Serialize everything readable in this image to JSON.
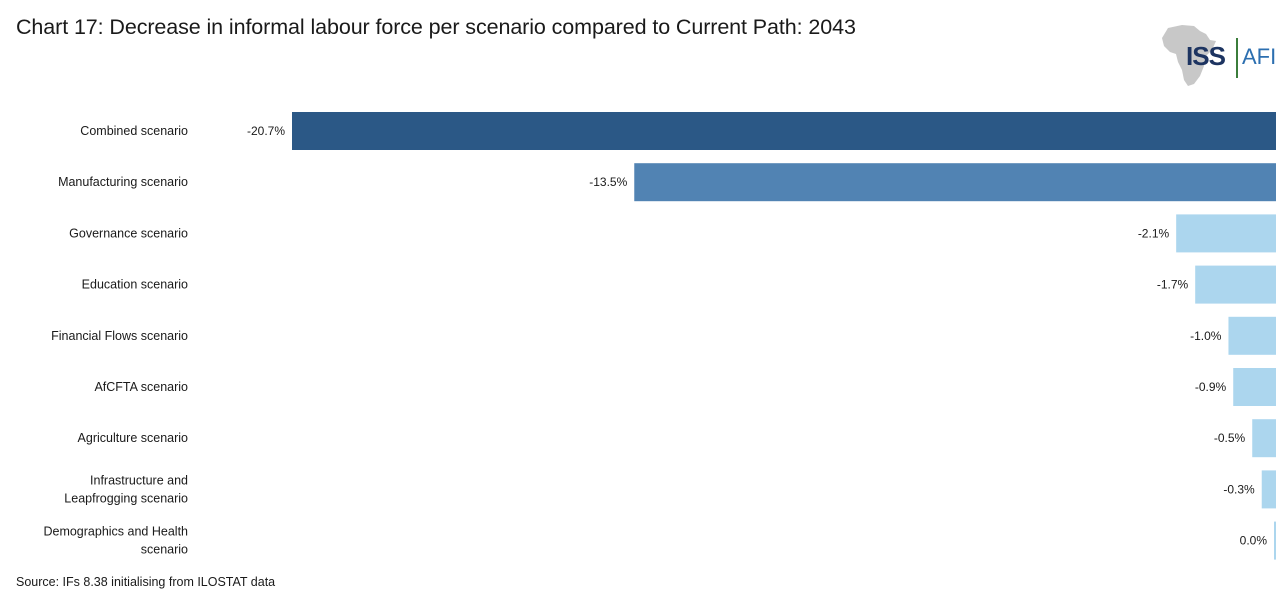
{
  "title": "Chart 17: Decrease in informal labour force per scenario compared to Current Path: 2043",
  "logo": {
    "text": "ISS",
    "text2": "AFI"
  },
  "source": "Source: IFs 8.38 initialising from ILOSTAT data",
  "chart_data": {
    "type": "bar",
    "orientation": "horizontal",
    "title": "Chart 17: Decrease in informal labour force per scenario compared to Current Path: 2043",
    "xlabel": "",
    "ylabel": "",
    "xlim": [
      -20.7,
      0
    ],
    "grid": false,
    "categories": [
      [
        "Combined scenario"
      ],
      [
        "Manufacturing scenario"
      ],
      [
        "Governance scenario"
      ],
      [
        "Education scenario"
      ],
      [
        "Financial Flows scenario"
      ],
      [
        "AfCFTA scenario"
      ],
      [
        "Agriculture scenario"
      ],
      [
        "Infrastructure and",
        "Leapfrogging scenario"
      ],
      [
        "Demographics and Health",
        "scenario"
      ]
    ],
    "values": [
      -20.7,
      -13.5,
      -2.1,
      -1.7,
      -1.0,
      -0.9,
      -0.5,
      -0.3,
      0.0
    ],
    "data_labels": [
      "-20.7%",
      "-13.5%",
      "-2.1%",
      "-1.7%",
      "-1.0%",
      "-0.9%",
      "-0.5%",
      "-0.3%",
      "0.0%"
    ],
    "colors": [
      "#2b5886",
      "#5183b3",
      "#acd6ee",
      "#acd6ee",
      "#acd6ee",
      "#acd6ee",
      "#acd6ee",
      "#acd6ee",
      "#acd6ee"
    ]
  }
}
